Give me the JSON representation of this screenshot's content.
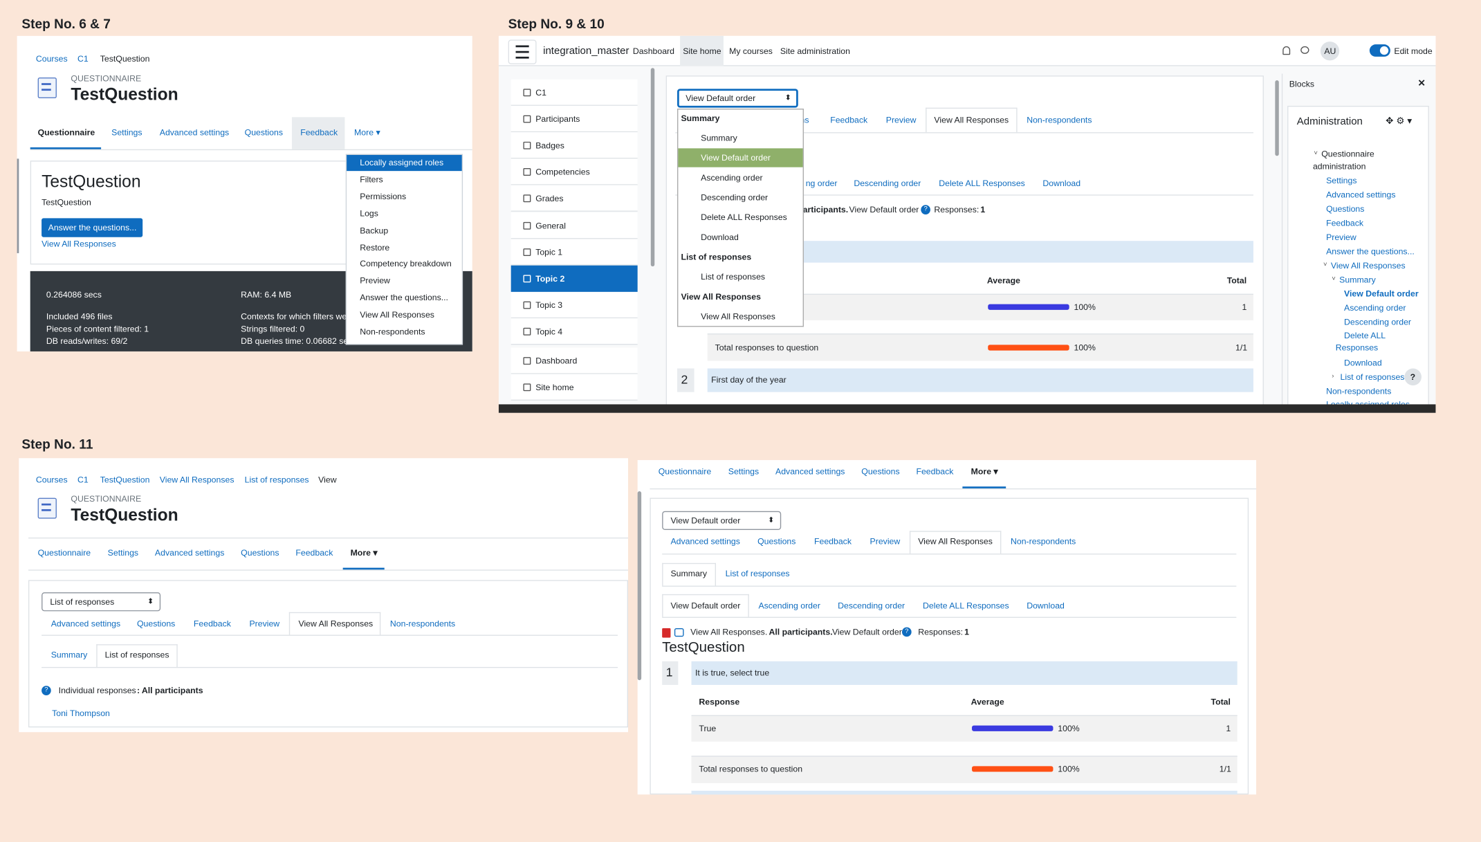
{
  "steps": [
    "Step No. 6 & 7",
    "Step No. 9 & 10",
    "Step No. 11"
  ],
  "panel_a": {
    "breadcrumb": [
      "Courses",
      "C1",
      "TestQuestion"
    ],
    "module_type": "QUESTIONNAIRE",
    "title": "TestQuestion",
    "tabs": [
      "Questionnaire",
      "Settings",
      "Advanced settings",
      "Questions",
      "Feedback",
      "More"
    ],
    "card": {
      "title": "TestQuestion",
      "description": "TestQuestion",
      "button": "Answer the questions...",
      "link": "View All Responses"
    },
    "footer": [
      "0.264086 secs",
      "RAM: 6.4 MB",
      "Included 496 files",
      "Pieces of content filtered: 1",
      "DB reads/writes: 69/2",
      "Contexts for which filters wer",
      "Strings filtered: 0",
      "DB queries time: 0.06682 se"
    ],
    "more_menu": [
      "Locally assigned roles",
      "Filters",
      "Permissions",
      "Logs",
      "Backup",
      "Restore",
      "Competency breakdown",
      "Preview",
      "Answer the questions...",
      "View All Responses",
      "Non-respondents"
    ]
  },
  "panel_b": {
    "site_name": "integration_master",
    "nav": [
      "Dashboard",
      "Site home",
      "My courses",
      "Site administration"
    ],
    "user": "AU",
    "edit_mode": "Edit mode",
    "course_index": [
      "C1",
      "Participants",
      "Badges",
      "Competencies",
      "Grades",
      "General",
      "Topic 1",
      "Topic 2",
      "Topic 3",
      "Topic 4",
      "Dashboard",
      "Site home"
    ],
    "select": "View Default order",
    "tabs": [
      "ns",
      "Feedback",
      "Preview",
      "View All Responses",
      "Non-respondents"
    ],
    "subtabs": [
      "ng order",
      "Descending order",
      "Delete ALL Responses",
      "Download"
    ],
    "info": {
      "participants": "articipants.",
      "order": "View Default order",
      "responses": "Responses:",
      "count": "1"
    },
    "table_header": [
      "Average",
      "Total"
    ],
    "row": {
      "percent": "100%",
      "count": "1"
    },
    "total_row": {
      "label": "Total responses to question",
      "percent": "100%",
      "count": "1/1"
    },
    "question2": {
      "number": "2",
      "text": "First day of the year"
    },
    "dropdown": [
      {
        "label": "Summary",
        "items": [
          "Summary",
          "View Default order",
          "Ascending order",
          "Descending order",
          "Delete ALL Responses",
          "Download"
        ]
      },
      {
        "label": "List of responses",
        "items": [
          "List of responses"
        ]
      },
      {
        "label": "View All Responses",
        "items": [
          "View All Responses"
        ]
      }
    ],
    "blocks": "Blocks",
    "admin_title": "Administration",
    "admin_tree": [
      "Questionnaire administration",
      "Settings",
      "Advanced settings",
      "Questions",
      "Feedback",
      "Preview",
      "Answer the questions...",
      "View All Responses",
      "Summary",
      "View Default order",
      "Ascending order",
      "Descending order",
      "Delete ALL Responses",
      "Download",
      "List of responses",
      "Non-respondents",
      "Locally assigned roles"
    ]
  },
  "panel_c": {
    "breadcrumb": [
      "Courses",
      "C1",
      "TestQuestion",
      "View All Responses",
      "List of responses",
      "View"
    ],
    "module_type": "QUESTIONNAIRE",
    "title": "TestQuestion",
    "tabs": [
      "Questionnaire",
      "Settings",
      "Advanced settings",
      "Questions",
      "Feedback",
      "More"
    ],
    "select": "List of responses",
    "tabs2": [
      "Advanced settings",
      "Questions",
      "Feedback",
      "Preview",
      "View All Responses",
      "Non-respondents"
    ],
    "subtabs": [
      "Summary",
      "List of responses"
    ],
    "individual": "Individual responses",
    "individual_sep": ":",
    "all_participants": "All participants",
    "respondent": "Toni Thompson"
  },
  "panel_d": {
    "tabs": [
      "Questionnaire",
      "Settings",
      "Advanced settings",
      "Questions",
      "Feedback",
      "More"
    ],
    "select": "View Default order",
    "tabs2": [
      "Advanced settings",
      "Questions",
      "Feedback",
      "Preview",
      "View All Responses",
      "Non-respondents"
    ],
    "subtabs": [
      "Summary",
      "List of responses"
    ],
    "order_tabs": [
      "View Default order",
      "Ascending order",
      "Descending order",
      "Delete ALL Responses",
      "Download"
    ],
    "info": {
      "view": "View All Responses.",
      "participants": "All participants.",
      "order": "View Default order",
      "responses": "Responses:",
      "count": "1"
    },
    "heading": "TestQuestion",
    "question1": {
      "number": "1",
      "text": "It is true, select true"
    },
    "table_header": [
      "Response",
      "Average",
      "Total"
    ],
    "row": {
      "response": "True",
      "percent": "100%",
      "count": "1"
    },
    "total_row": {
      "label": "Total responses to question",
      "percent": "100%",
      "count": "1/1"
    }
  }
}
